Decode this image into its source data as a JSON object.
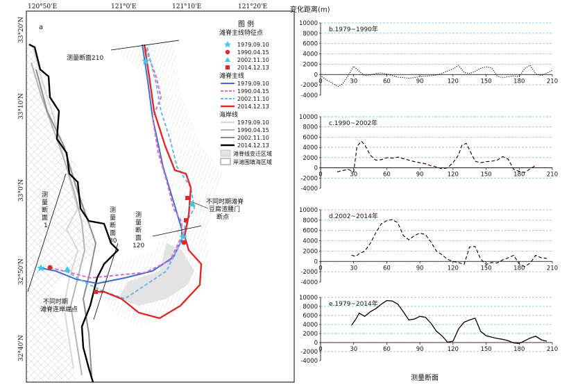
{
  "map": {
    "panel_label": "a",
    "top_coords": [
      "120°50'E",
      "121°0'E",
      "121°10'E",
      "121°20'E"
    ],
    "left_coords": [
      "33°20'N",
      "33°10'N",
      "33°0'N",
      "32°50'N",
      "32°40'N"
    ],
    "annotations": {
      "section210": "测量断面210",
      "section1": [
        "测",
        "量",
        "断",
        "面",
        "1"
      ],
      "section30": [
        "测",
        "量",
        "断",
        "面",
        "30"
      ],
      "section120": [
        "测",
        "量",
        "断",
        "面",
        "120"
      ],
      "shore_points": [
        "不同时期",
        "滩脊连岸端点"
      ],
      "breakpoints": [
        "不同时期滩脊",
        "豆腐渣腰门",
        "断点"
      ]
    },
    "legend": {
      "title": "图  例",
      "feature_header": "滩脊主线特征点",
      "feature_items": [
        {
          "label": "1979.09.10",
          "marker": "star",
          "color": "#3fc8e8"
        },
        {
          "label": "1990.04.15",
          "marker": "circle",
          "color": "#e0282a"
        },
        {
          "label": "2002.11.10",
          "marker": "triangle",
          "color": "#3fc8e8"
        },
        {
          "label": "2014.12.13",
          "marker": "square",
          "color": "#e0282a"
        }
      ],
      "ridge_header": "滩脊主线",
      "ridge_items": [
        {
          "label": "1979.09.10",
          "color": "#3a6fd0",
          "dash": "solid"
        },
        {
          "label": "1990.04.15",
          "color": "#e466c8",
          "dash": "dashed"
        },
        {
          "label": "2002.11.10",
          "color": "#6fb2ec",
          "dash": "dashed"
        },
        {
          "label": "2014.12.13",
          "color": "#e0282a",
          "dash": "solid"
        }
      ],
      "shore_header": "海岸线",
      "shore_items": [
        {
          "label": "1979.09.10",
          "color": "#d8d8d8"
        },
        {
          "label": "1990.04.15",
          "color": "#b4b4b4"
        },
        {
          "label": "2002.11.10",
          "color": "#8c8c8c"
        },
        {
          "label": "2014.12.13",
          "color": "#000000"
        }
      ],
      "area_items": [
        "滩脊线变迁区域",
        "岸滩围填海区域"
      ]
    }
  },
  "chart_data": [
    {
      "type": "line",
      "panel": "b.1979~1990年",
      "ylabel": "变化距离(m)",
      "xlabel": "",
      "xlim": [
        0,
        210
      ],
      "ylim": [
        -4000,
        10000
      ],
      "yticks": [
        -4000,
        -2000,
        0,
        2000,
        4000,
        6000,
        8000,
        10000
      ],
      "xticks": [
        0,
        30,
        60,
        90,
        120,
        150,
        180,
        210
      ],
      "line_style": "dotted",
      "x": [
        1,
        6,
        11,
        16,
        20,
        25,
        30,
        35,
        40,
        45,
        50,
        55,
        60,
        65,
        70,
        75,
        80,
        85,
        90,
        95,
        100,
        105,
        110,
        115,
        120,
        125,
        130,
        135,
        140,
        145,
        150,
        155,
        160,
        165,
        170,
        175,
        180,
        185,
        190,
        195,
        200,
        205,
        210
      ],
      "y": [
        -400,
        -1100,
        -1700,
        -2300,
        -1800,
        -200,
        1600,
        600,
        -200,
        -100,
        200,
        300,
        100,
        -200,
        -500,
        -600,
        -700,
        -600,
        -400,
        -300,
        -200,
        -100,
        200,
        700,
        1100,
        1800,
        400,
        200,
        600,
        1200,
        1500,
        1300,
        -300,
        -600,
        -400,
        -300,
        -400,
        1200,
        1800,
        100,
        -200,
        300,
        800
      ]
    },
    {
      "type": "line",
      "panel": "c.1990~2002年",
      "ylabel": "",
      "xlabel": "",
      "xlim": [
        0,
        210
      ],
      "ylim": [
        -4000,
        10000
      ],
      "yticks": [
        -4000,
        -2000,
        0,
        2000,
        4000,
        6000,
        8000,
        10000
      ],
      "xticks": [
        0,
        30,
        60,
        90,
        120,
        150,
        180,
        210
      ],
      "line_style": "dashed",
      "x": [
        15,
        20,
        25,
        30,
        33,
        37,
        40,
        45,
        50,
        55,
        60,
        65,
        70,
        75,
        80,
        85,
        90,
        95,
        100,
        105,
        110,
        115,
        120,
        125,
        128,
        132,
        135,
        140,
        145,
        150,
        155,
        160,
        165,
        170,
        175,
        180,
        185,
        190,
        195
      ],
      "y": [
        -800,
        -500,
        -300,
        -800,
        4200,
        5200,
        4500,
        2500,
        1500,
        1600,
        2000,
        1900,
        2100,
        1800,
        1500,
        1200,
        1000,
        800,
        400,
        200,
        -200,
        0,
        1000,
        2500,
        4400,
        4800,
        3500,
        1300,
        1000,
        1200,
        1300,
        1500,
        2200,
        1700,
        -300,
        -700,
        -900,
        -200,
        500
      ]
    },
    {
      "type": "line",
      "panel": "d.2002~2014年",
      "ylabel": "",
      "xlabel": "",
      "xlim": [
        0,
        210
      ],
      "ylim": [
        -4000,
        10000
      ],
      "yticks": [
        -4000,
        -2000,
        0,
        2000,
        4000,
        6000,
        8000,
        10000
      ],
      "xticks": [
        0,
        30,
        60,
        90,
        120,
        150,
        180,
        210
      ],
      "line_style": "dashed",
      "x": [
        28,
        32,
        35,
        40,
        45,
        50,
        55,
        60,
        65,
        70,
        75,
        80,
        85,
        90,
        95,
        100,
        105,
        110,
        115,
        120,
        125,
        130,
        135,
        140,
        145,
        150,
        155,
        160,
        165,
        170,
        175,
        180,
        185,
        190,
        195,
        200,
        205
      ],
      "y": [
        1200,
        1000,
        1500,
        2000,
        3500,
        5500,
        7300,
        7900,
        8100,
        7500,
        5000,
        4200,
        5000,
        5500,
        5200,
        3800,
        2000,
        1300,
        400,
        0,
        -200,
        -600,
        2800,
        2900,
        500,
        -600,
        -200,
        -300,
        300,
        700,
        1200,
        -500,
        -1000,
        -300,
        1200,
        700,
        600
      ]
    },
    {
      "type": "line",
      "panel": "e.1979~2014年",
      "ylabel": "",
      "xlabel": "测量断面",
      "xlim": [
        0,
        210
      ],
      "ylim": [
        -4000,
        10000
      ],
      "yticks": [
        -4000,
        -2000,
        0,
        2000,
        4000,
        6000,
        8000,
        10000
      ],
      "xticks": [
        0,
        30,
        60,
        90,
        120,
        150,
        180,
        210
      ],
      "line_style": "solid",
      "x": [
        28,
        32,
        35,
        40,
        45,
        50,
        55,
        60,
        65,
        70,
        75,
        80,
        85,
        90,
        95,
        100,
        105,
        110,
        115,
        120,
        125,
        130,
        135,
        140,
        145,
        150,
        155,
        160,
        165,
        170,
        175,
        180,
        185,
        190,
        195,
        200,
        205
      ],
      "y": [
        3800,
        5200,
        6500,
        5800,
        6800,
        7500,
        8500,
        9300,
        9200,
        8500,
        6800,
        5000,
        5200,
        5800,
        5600,
        4300,
        2500,
        1500,
        100,
        300,
        3000,
        4500,
        5000,
        5400,
        2500,
        1500,
        1200,
        900,
        700,
        400,
        -100,
        -200,
        400,
        1000,
        1400,
        600,
        300
      ]
    }
  ]
}
